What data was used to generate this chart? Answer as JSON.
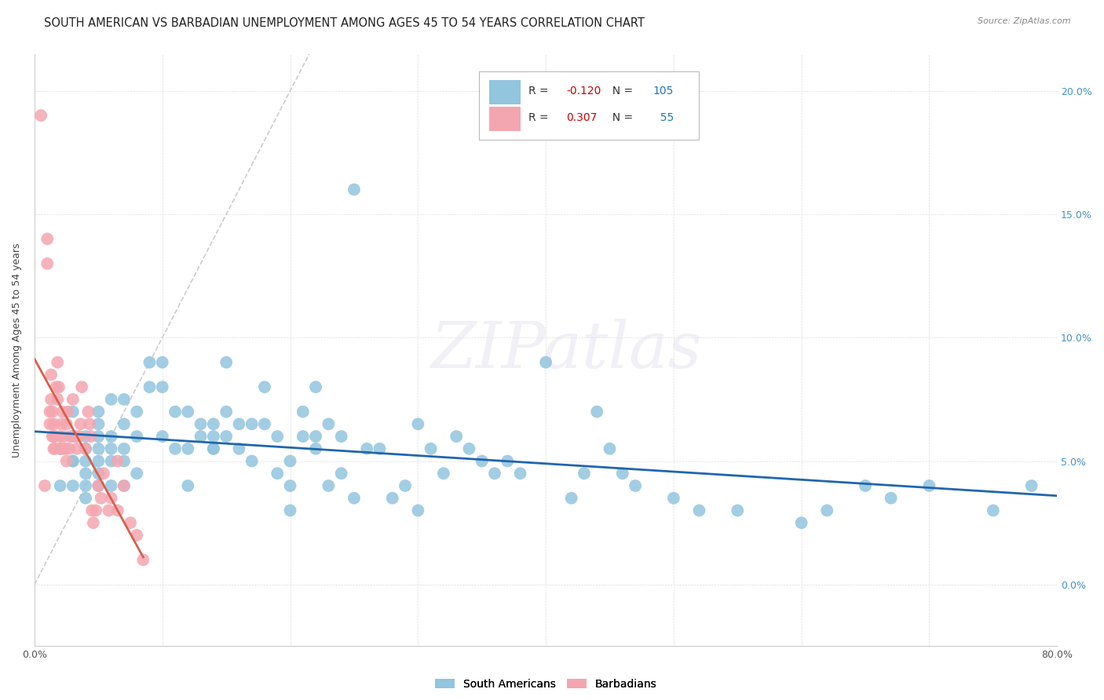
{
  "title": "SOUTH AMERICAN VS BARBADIAN UNEMPLOYMENT AMONG AGES 45 TO 54 YEARS CORRELATION CHART",
  "source": "Source: ZipAtlas.com",
  "ylabel": "Unemployment Among Ages 45 to 54 years",
  "xlim": [
    0.0,
    0.8
  ],
  "ylim": [
    -0.025,
    0.215
  ],
  "xticks": [
    0.0,
    0.1,
    0.2,
    0.3,
    0.4,
    0.5,
    0.6,
    0.7,
    0.8
  ],
  "yticks": [
    0.0,
    0.05,
    0.1,
    0.15,
    0.2
  ],
  "ytick_labels": [
    "0.0%",
    "5.0%",
    "10.0%",
    "15.0%",
    "20.0%"
  ],
  "xtick_labels": [
    "0.0%",
    "",
    "",
    "",
    "",
    "",
    "",
    "",
    "80.0%"
  ],
  "blue_R": -0.12,
  "blue_N": 105,
  "pink_R": 0.307,
  "pink_N": 55,
  "blue_color": "#92c5de",
  "pink_color": "#f4a6b0",
  "blue_line_color": "#2166ac",
  "pink_line_color": "#d6604d",
  "diagonal_color": "#cccccc",
  "watermark_text": "ZIPatlas",
  "right_ytick_color": "#4393c3",
  "blue_scatter_x": [
    0.02,
    0.02,
    0.03,
    0.03,
    0.03,
    0.03,
    0.03,
    0.04,
    0.04,
    0.04,
    0.04,
    0.04,
    0.04,
    0.05,
    0.05,
    0.05,
    0.05,
    0.05,
    0.05,
    0.05,
    0.06,
    0.06,
    0.06,
    0.06,
    0.06,
    0.07,
    0.07,
    0.07,
    0.07,
    0.07,
    0.08,
    0.08,
    0.08,
    0.09,
    0.09,
    0.1,
    0.1,
    0.1,
    0.11,
    0.11,
    0.12,
    0.12,
    0.12,
    0.13,
    0.13,
    0.14,
    0.14,
    0.14,
    0.14,
    0.15,
    0.15,
    0.15,
    0.16,
    0.16,
    0.17,
    0.17,
    0.18,
    0.18,
    0.19,
    0.19,
    0.2,
    0.2,
    0.2,
    0.21,
    0.21,
    0.22,
    0.22,
    0.22,
    0.23,
    0.23,
    0.24,
    0.24,
    0.25,
    0.25,
    0.26,
    0.27,
    0.28,
    0.29,
    0.3,
    0.3,
    0.31,
    0.32,
    0.33,
    0.34,
    0.35,
    0.36,
    0.37,
    0.38,
    0.4,
    0.42,
    0.43,
    0.44,
    0.45,
    0.46,
    0.47,
    0.5,
    0.52,
    0.55,
    0.6,
    0.62,
    0.65,
    0.67,
    0.7,
    0.75,
    0.78
  ],
  "blue_scatter_y": [
    0.055,
    0.04,
    0.05,
    0.06,
    0.04,
    0.07,
    0.05,
    0.055,
    0.04,
    0.06,
    0.045,
    0.035,
    0.05,
    0.06,
    0.05,
    0.04,
    0.07,
    0.055,
    0.045,
    0.065,
    0.055,
    0.05,
    0.06,
    0.04,
    0.075,
    0.065,
    0.075,
    0.05,
    0.04,
    0.055,
    0.045,
    0.06,
    0.07,
    0.08,
    0.09,
    0.08,
    0.06,
    0.09,
    0.07,
    0.055,
    0.055,
    0.07,
    0.04,
    0.065,
    0.06,
    0.055,
    0.065,
    0.055,
    0.06,
    0.09,
    0.06,
    0.07,
    0.065,
    0.055,
    0.065,
    0.05,
    0.065,
    0.08,
    0.06,
    0.045,
    0.03,
    0.05,
    0.04,
    0.07,
    0.06,
    0.06,
    0.08,
    0.055,
    0.065,
    0.04,
    0.045,
    0.06,
    0.16,
    0.035,
    0.055,
    0.055,
    0.035,
    0.04,
    0.03,
    0.065,
    0.055,
    0.045,
    0.06,
    0.055,
    0.05,
    0.045,
    0.05,
    0.045,
    0.09,
    0.035,
    0.045,
    0.07,
    0.055,
    0.045,
    0.04,
    0.035,
    0.03,
    0.03,
    0.025,
    0.03,
    0.04,
    0.035,
    0.04,
    0.03,
    0.04
  ],
  "pink_scatter_x": [
    0.005,
    0.008,
    0.01,
    0.01,
    0.012,
    0.012,
    0.013,
    0.013,
    0.014,
    0.014,
    0.015,
    0.015,
    0.015,
    0.016,
    0.016,
    0.017,
    0.018,
    0.018,
    0.019,
    0.02,
    0.02,
    0.021,
    0.022,
    0.022,
    0.023,
    0.024,
    0.025,
    0.025,
    0.026,
    0.027,
    0.028,
    0.03,
    0.032,
    0.033,
    0.035,
    0.036,
    0.037,
    0.04,
    0.042,
    0.043,
    0.044,
    0.045,
    0.046,
    0.048,
    0.05,
    0.052,
    0.054,
    0.058,
    0.06,
    0.065,
    0.065,
    0.07,
    0.075,
    0.08,
    0.085
  ],
  "pink_scatter_y": [
    0.19,
    0.04,
    0.13,
    0.14,
    0.065,
    0.07,
    0.075,
    0.085,
    0.06,
    0.07,
    0.055,
    0.06,
    0.065,
    0.055,
    0.06,
    0.08,
    0.09,
    0.075,
    0.08,
    0.055,
    0.06,
    0.065,
    0.055,
    0.07,
    0.06,
    0.055,
    0.065,
    0.05,
    0.07,
    0.055,
    0.06,
    0.075,
    0.06,
    0.055,
    0.06,
    0.065,
    0.08,
    0.055,
    0.07,
    0.065,
    0.06,
    0.03,
    0.025,
    0.03,
    0.04,
    0.035,
    0.045,
    0.03,
    0.035,
    0.03,
    0.05,
    0.04,
    0.025,
    0.02,
    0.01
  ]
}
